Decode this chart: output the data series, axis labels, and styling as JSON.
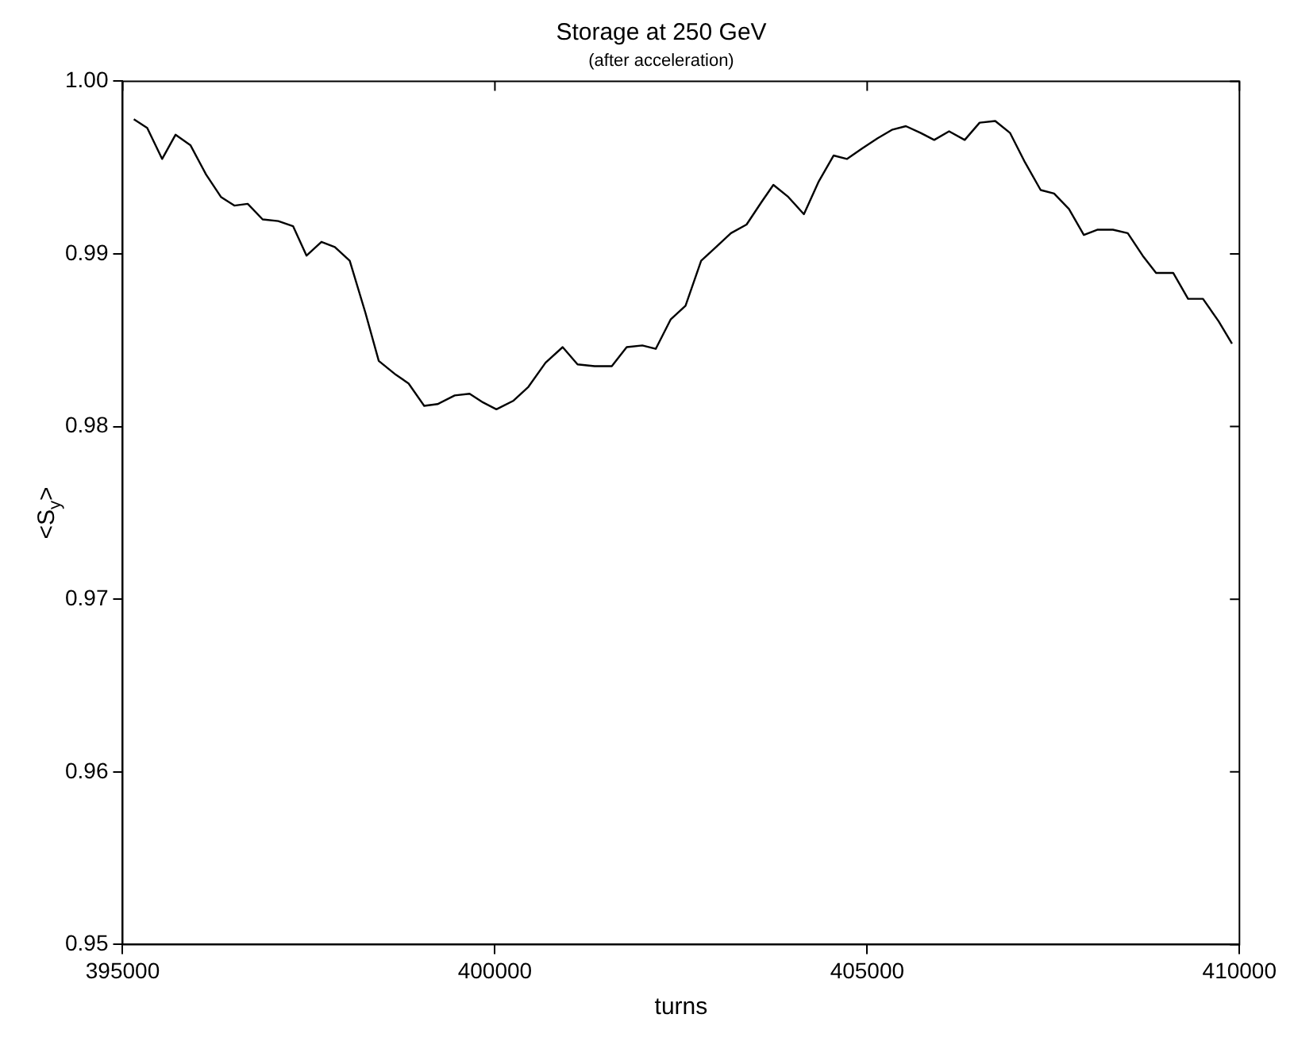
{
  "chart_data": {
    "type": "line",
    "title": "Storage at 250 GeV",
    "subtitle": "(after acceleration)",
    "xlabel": "turns",
    "ylabel": "<S$_{y}$>",
    "xlim": [
      395000,
      410000
    ],
    "xticks": [
      395000,
      400000,
      405000,
      410000
    ],
    "ylim": [
      0.95,
      1.0
    ],
    "yticks": [
      {
        "value": 0.95,
        "label": "0.95"
      },
      {
        "value": 0.96,
        "label": "0.96"
      },
      {
        "value": 0.97,
        "label": "0.97"
      },
      {
        "value": 0.98,
        "label": "0.98"
      },
      {
        "value": 0.99,
        "label": "0.99"
      },
      {
        "value": 1.0,
        "label": "1.00"
      }
    ],
    "grid": false,
    "legend": false,
    "marker": "none",
    "line_style": "solid",
    "x": [
      395150,
      395330,
      395530,
      395710,
      395910,
      396120,
      396320,
      396500,
      396680,
      396880,
      397090,
      397290,
      397470,
      397670,
      397850,
      398050,
      398260,
      398440,
      398670,
      398840,
      399050,
      399230,
      399460,
      399660,
      399840,
      400020,
      400250,
      400450,
      400680,
      400910,
      401110,
      401340,
      401570,
      401770,
      401980,
      402160,
      402360,
      402560,
      402770,
      402970,
      403170,
      403380,
      403580,
      403740,
      403940,
      404150,
      404350,
      404550,
      404730,
      404930,
      405140,
      405340,
      405520,
      405720,
      405900,
      406100,
      406310,
      406510,
      406720,
      406920,
      407120,
      407330,
      407510,
      407710,
      407910,
      408090,
      408300,
      408500,
      408700,
      408880,
      409110,
      409310,
      409510,
      409720,
      409900
    ],
    "series": [
      {
        "color": "#000000",
        "values": [
          0.9978,
          0.9973,
          0.9955,
          0.9969,
          0.9963,
          0.9946,
          0.9933,
          0.9928,
          0.9929,
          0.992,
          0.9919,
          0.9916,
          0.9899,
          0.9907,
          0.9904,
          0.9896,
          0.9866,
          0.9838,
          0.983,
          0.9825,
          0.9812,
          0.9813,
          0.9818,
          0.9819,
          0.9814,
          0.981,
          0.9815,
          0.9823,
          0.9837,
          0.9846,
          0.9836,
          0.9835,
          0.9835,
          0.9846,
          0.9847,
          0.9845,
          0.9862,
          0.987,
          0.9896,
          0.9904,
          0.9912,
          0.9917,
          0.993,
          0.994,
          0.9933,
          0.9923,
          0.9942,
          0.9957,
          0.9955,
          0.9961,
          0.9967,
          0.9972,
          0.9974,
          0.997,
          0.9966,
          0.9971,
          0.9966,
          0.9976,
          0.9977,
          0.997,
          0.9953,
          0.9937,
          0.9935,
          0.9926,
          0.9911,
          0.9914,
          0.9914,
          0.9912,
          0.9899,
          0.9889,
          0.9889,
          0.9874,
          0.9874,
          0.9861,
          0.9848
        ]
      }
    ]
  }
}
